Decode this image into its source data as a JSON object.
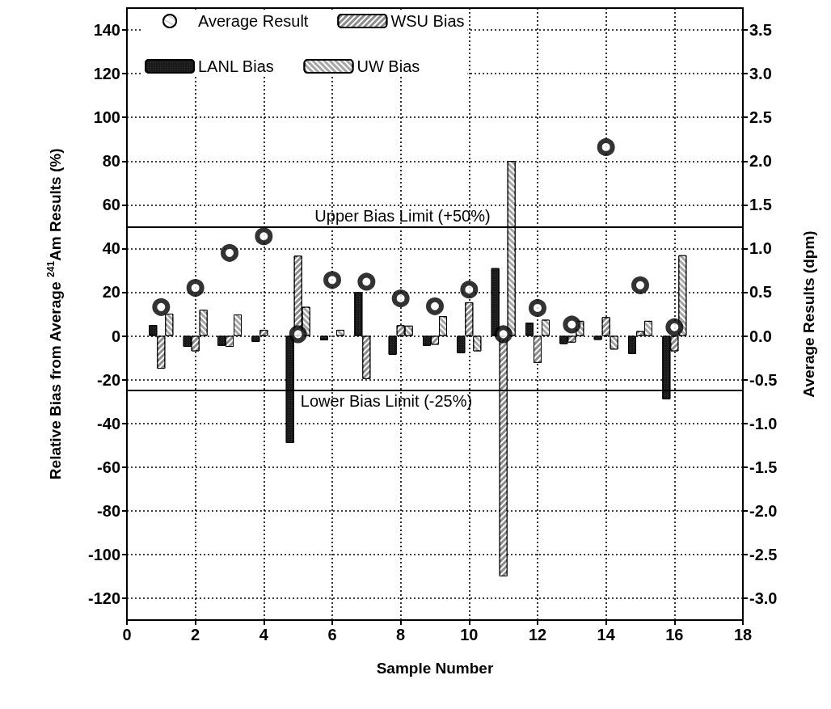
{
  "chart_data": {
    "type": "bar",
    "xlabel": "Sample Number",
    "ylabel": "Relative Bias from Average $^{241}$Am Results (%)",
    "y2label": "Average Results (dpm)",
    "x": [
      1,
      2,
      3,
      4,
      5,
      6,
      7,
      8,
      9,
      10,
      11,
      12,
      13,
      14,
      15,
      16
    ],
    "series": [
      {
        "name": "Average Result",
        "type": "scatter",
        "axis": "y2",
        "color": "#000000",
        "marker": "circle",
        "values": [
          0.33,
          0.55,
          0.95,
          1.14,
          0.02,
          0.64,
          0.62,
          0.43,
          0.34,
          0.53,
          0.02,
          0.32,
          0.13,
          2.16,
          0.58,
          0.1
        ]
      },
      {
        "name": "LANL Bias",
        "color": "#1a1a1a",
        "values": [
          5,
          -5,
          -4.5,
          -2.7,
          -49,
          -2,
          20,
          -8.6,
          -4.5,
          -7.9,
          31,
          6,
          -3.7,
          -1.8,
          -8.2,
          -29
        ]
      },
      {
        "name": "WSU Bias",
        "color": "#8c8c8c",
        "values": [
          -15,
          -7,
          -5,
          2.8,
          36.7,
          null,
          -19.7,
          4.9,
          -4,
          15.4,
          -110,
          -12.3,
          -3,
          8.6,
          2.2,
          -7
        ]
      },
      {
        "name": "UW Bias",
        "color": "#a6a6a6",
        "values": [
          10.2,
          12,
          9.8,
          null,
          13.3,
          2.8,
          null,
          4.7,
          9,
          -7,
          80,
          7.4,
          6.9,
          -6.2,
          6.9,
          36.9
        ]
      }
    ],
    "xlim": [
      0,
      18
    ],
    "xticks": [
      0,
      2,
      4,
      6,
      8,
      10,
      12,
      14,
      16,
      18
    ],
    "ylim": [
      -130,
      150
    ],
    "yticks": [
      -120,
      -100,
      -80,
      -60,
      -40,
      -20,
      0,
      20,
      40,
      60,
      80,
      100,
      120,
      140
    ],
    "y2lim": [
      -3.25,
      3.75
    ],
    "y2ticks": [
      {
        "value": -3,
        "label": "-3.0"
      },
      {
        "value": -2.5,
        "label": "-2.5"
      },
      {
        "value": -2,
        "label": "-2.0"
      },
      {
        "value": -1.5,
        "label": "-1.5"
      },
      {
        "value": -1,
        "label": "-1.0"
      },
      {
        "value": -0.5,
        "label": "-0.5"
      },
      {
        "value": 0,
        "label": "0.0"
      },
      {
        "value": 0.5,
        "label": "0.5"
      },
      {
        "value": 1,
        "label": "1.0"
      },
      {
        "value": 1.5,
        "label": "1.5"
      },
      {
        "value": 2,
        "label": "2.0"
      },
      {
        "value": 2.5,
        "label": "2.5"
      },
      {
        "value": 3,
        "label": "3.0"
      },
      {
        "value": 3.5,
        "label": "3.5"
      }
    ],
    "ref_lines": [
      {
        "axis": "y",
        "value": 50,
        "label": "Upper Bias Limit (+50%)",
        "color": "#000000"
      },
      {
        "axis": "y",
        "value": -25,
        "label": "Lower Bias Limit (-25%)",
        "color": "#000000"
      }
    ],
    "grid": true,
    "legend": "top left",
    "line_style": "solid"
  }
}
